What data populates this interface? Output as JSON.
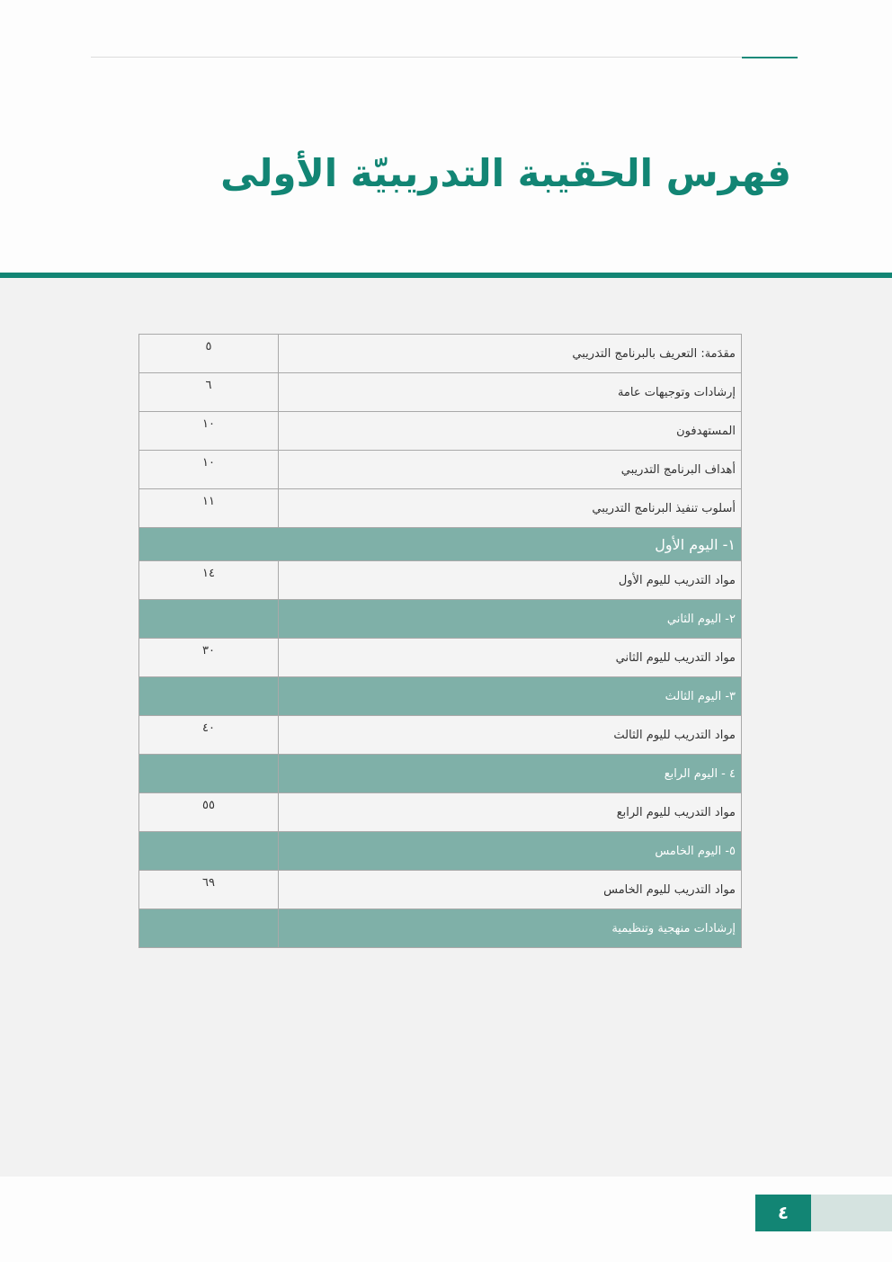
{
  "title": "فهرس الحقيبة التدريبيّة الأولى",
  "colors": {
    "accent": "#128574",
    "section_row": "#7fb0a8",
    "page_bg": "#f2f2f2"
  },
  "toc": [
    {
      "label": "مقدَمة: التعريف بالبرنامج التدريبي",
      "page": "٥",
      "type": "item"
    },
    {
      "label": "إرشادات وتوجيهات عامة",
      "page": "٦",
      "type": "item"
    },
    {
      "label": "المستهدفون",
      "page": "١٠",
      "type": "item"
    },
    {
      "label": "أهداف البرنامج التدريبي",
      "page": "١٠",
      "type": "item"
    },
    {
      "label": "أسلوب تنفيذ البرنامج التدريبي",
      "page": "١١",
      "type": "item"
    },
    {
      "label": "١- اليوم الأول",
      "page": "",
      "type": "section-full"
    },
    {
      "label": "مواد التدريب لليوم الأول",
      "page": "١٤",
      "type": "item"
    },
    {
      "label": "٢- اليوم الثاني",
      "page": "",
      "type": "section"
    },
    {
      "label": "مواد التدريب لليوم الثاني",
      "page": "٣٠",
      "type": "item"
    },
    {
      "label": "٣- اليوم الثالث",
      "page": "",
      "type": "section"
    },
    {
      "label": "مواد التدريب لليوم الثالث",
      "page": "٤٠",
      "type": "item"
    },
    {
      "label": "٤ - اليوم الرابع",
      "page": "",
      "type": "section"
    },
    {
      "label": "مواد التدريب لليوم الرابع",
      "page": "٥٥",
      "type": "item"
    },
    {
      "label": "٥- اليوم الخامس",
      "page": "",
      "type": "section"
    },
    {
      "label": "مواد التدريب لليوم الخامس",
      "page": "٦٩",
      "type": "item"
    },
    {
      "label": "إرشادات منهجية وتنظيمية",
      "page": "",
      "type": "section"
    }
  ],
  "page_number": "٤"
}
